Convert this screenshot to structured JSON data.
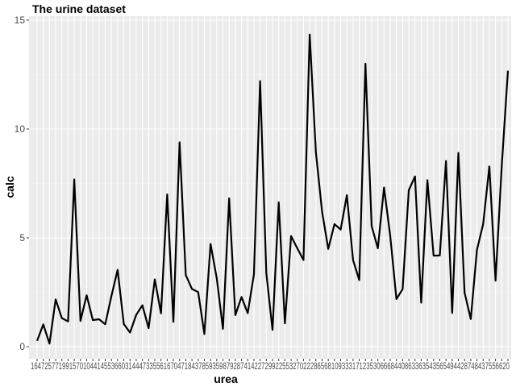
{
  "chart_data": {
    "type": "line",
    "title": "The urine dataset",
    "xlabel": "urea",
    "ylabel": "calc",
    "ylim": [
      0,
      15
    ],
    "yticks": [
      0,
      5,
      10,
      15
    ],
    "grid": true,
    "background": "#ebebeb",
    "line_color": "#000000",
    "x_tick_text": "16472577199157010441455366031444733556167047184378593598792874142272992255327022286568109333171235306668440863363543565494428748437556620",
    "values": [
      0.27,
      1.02,
      0.14,
      2.17,
      1.31,
      1.16,
      7.68,
      1.18,
      2.36,
      1.22,
      1.26,
      1.03,
      2.33,
      3.53,
      1.04,
      0.65,
      1.46,
      1.9,
      0.85,
      3.09,
      1.53,
      6.99,
      1.14,
      9.39,
      3.29,
      2.65,
      2.51,
      0.58,
      4.72,
      3.14,
      0.82,
      6.81,
      1.45,
      2.28,
      1.54,
      3.32,
      12.2,
      3.38,
      0.77,
      6.63,
      1.07,
      5.08,
      4.52,
      3.98,
      14.34,
      8.94,
      6.2,
      4.49,
      5.63,
      5.38,
      6.96,
      3.98,
      3.06,
      13.0,
      5.54,
      4.52,
      7.31,
      5.09,
      2.19,
      2.64,
      7.19,
      7.82,
      2.02,
      7.65,
      4.18,
      4.19,
      8.53,
      1.55,
      8.9,
      2.48,
      1.27,
      4.45,
      5.63,
      8.28,
      3.03,
      8.3,
      12.68
    ]
  }
}
